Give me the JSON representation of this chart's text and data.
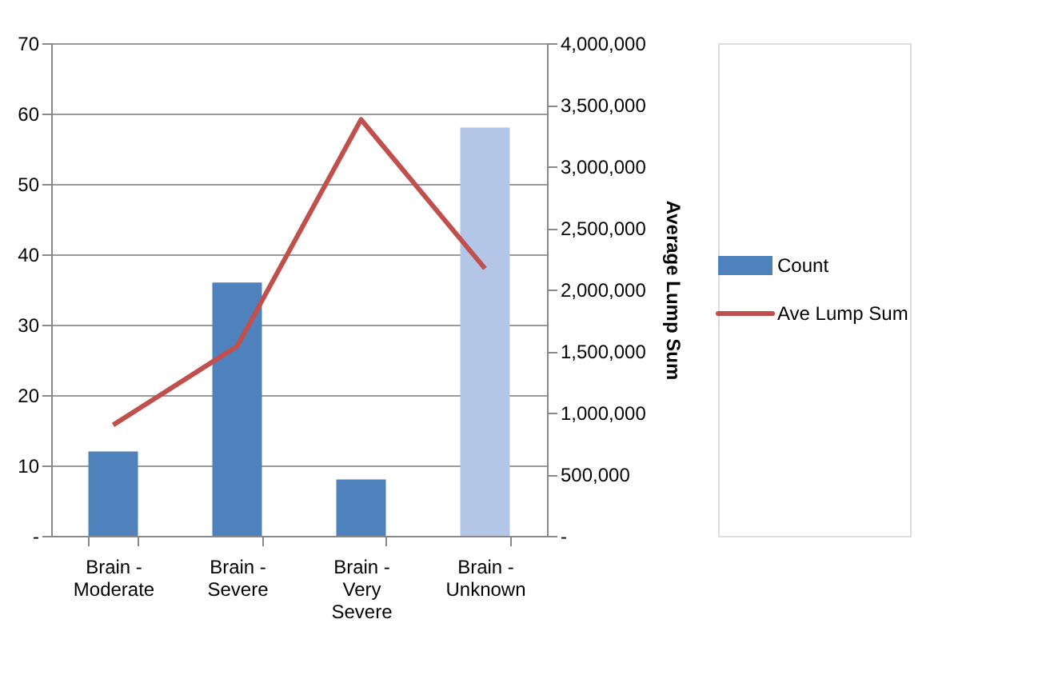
{
  "chart_data": {
    "type": "bar",
    "categories": [
      "Brain - Moderate",
      "Brain - Severe",
      "Brain - Very Severe",
      "Brain - Unknown"
    ],
    "series": [
      {
        "name": "Count",
        "color": "#4f81bd",
        "colors": [
          "#4f81bd",
          "#4f81bd",
          "#4f81bd",
          "#b4c6e7"
        ],
        "values": [
          12,
          36,
          8,
          58
        ]
      },
      {
        "name": "Ave Lump Sum",
        "type": "line",
        "axis": "y2",
        "color": "#c0504d",
        "values": [
          900000,
          1540000,
          3380000,
          2170000
        ]
      }
    ],
    "ylim": [
      0,
      70
    ],
    "yticks": [
      {
        "value": 0,
        "label": "-"
      },
      10,
      20,
      30,
      40,
      50,
      60,
      70
    ],
    "y2lim": [
      0,
      4000000
    ],
    "y2ticks": [
      {
        "value": 0,
        "label": "-"
      },
      {
        "value": 500000,
        "label": "500,000"
      },
      {
        "value": 1000000,
        "label": "1,000,000"
      },
      {
        "value": 1500000,
        "label": "1,500,000"
      },
      {
        "value": 2000000,
        "label": "2,000,000"
      },
      {
        "value": 2500000,
        "label": "2,500,000"
      },
      {
        "value": 3000000,
        "label": "3,000,000"
      },
      {
        "value": 3500000,
        "label": "3,500,000"
      },
      {
        "value": 4000000,
        "label": "4,000,000"
      }
    ],
    "y2label": "Average Lump Sum",
    "grid": "y",
    "legend": "right"
  }
}
